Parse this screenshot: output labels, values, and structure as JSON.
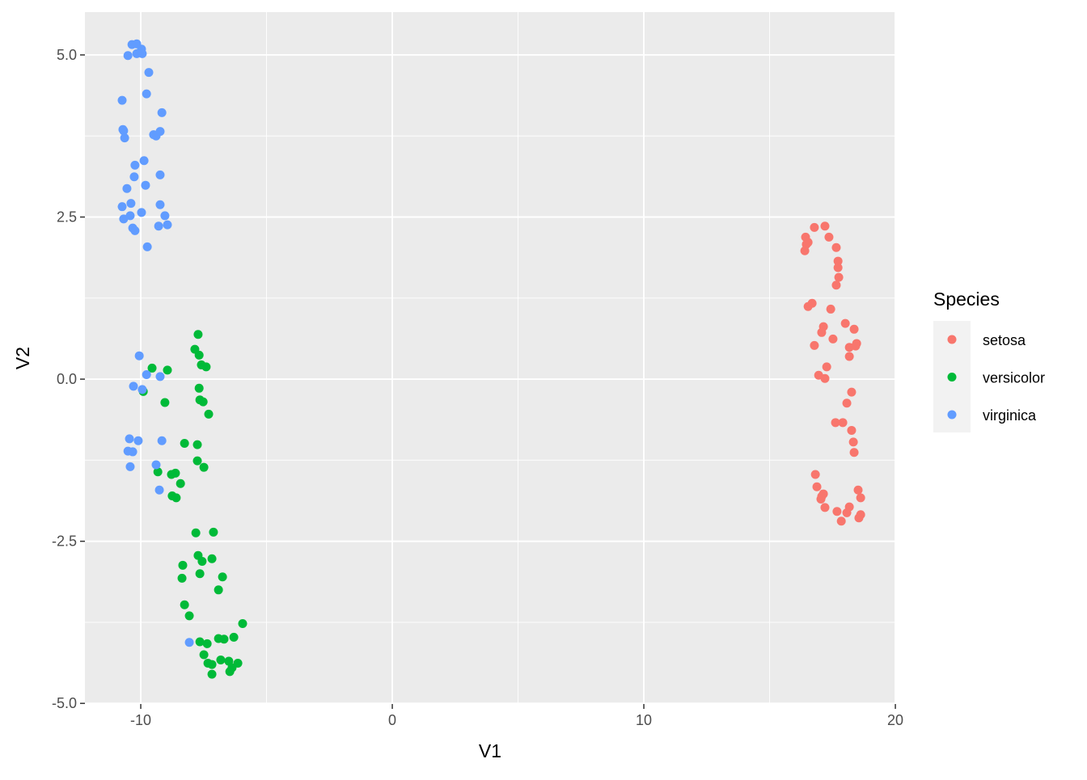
{
  "chart_data": {
    "type": "scatter",
    "title": "",
    "xlabel": "V1",
    "ylabel": "V2",
    "xlim": [
      -12.22,
      20.03
    ],
    "ylim": [
      -5.01,
      5.66
    ],
    "xticks": [
      -10,
      0,
      10,
      20
    ],
    "xtick_labels": [
      "-10",
      "0",
      "10",
      "20"
    ],
    "yticks": [
      -5,
      -2.5,
      0,
      2.5,
      5
    ],
    "ytick_labels": [
      "-5.0",
      "-2.5",
      "0.0",
      "2.5",
      "5.0"
    ],
    "grid": true,
    "panel_background": "#EBEBEB",
    "legend": {
      "title": "Species",
      "placement": "right"
    },
    "series": [
      {
        "name": "setosa",
        "color": "#F8766D",
        "x": [
          16.78,
          17.2,
          16.43,
          16.53,
          16.46,
          17.36,
          17.65,
          16.4,
          17.72,
          17.72,
          17.75,
          17.65,
          16.69,
          16.53,
          17.43,
          17.14,
          17.07,
          18.01,
          18.36,
          17.52,
          16.78,
          18.46,
          18.42,
          18.17,
          18.17,
          17.27,
          16.95,
          17.2,
          18.26,
          18.07,
          17.62,
          17.91,
          18.26,
          18.33,
          18.36,
          16.82,
          16.88,
          17.14,
          17.04,
          17.07,
          18.52,
          18.62,
          17.2,
          18.17,
          17.68,
          18.07,
          18.62,
          18.55,
          17.85
        ],
        "y": [
          2.34,
          2.36,
          2.19,
          2.11,
          2.08,
          2.19,
          2.03,
          1.98,
          1.82,
          1.72,
          1.57,
          1.45,
          1.17,
          1.12,
          1.08,
          0.81,
          0.72,
          0.86,
          0.77,
          0.62,
          0.52,
          0.55,
          0.51,
          0.49,
          0.35,
          0.19,
          0.06,
          0.01,
          -0.2,
          -0.37,
          -0.67,
          -0.67,
          -0.79,
          -0.97,
          -1.13,
          -1.47,
          -1.66,
          -1.77,
          -1.85,
          -1.81,
          -1.71,
          -1.83,
          -1.98,
          -1.97,
          -2.04,
          -2.06,
          -2.09,
          -2.14,
          -2.19
        ]
      },
      {
        "name": "versicolor",
        "color": "#00BA38",
        "x": [
          -7.72,
          -7.85,
          -7.68,
          -7.59,
          -7.4,
          -9.55,
          -8.94,
          -7.68,
          -7.65,
          -7.52,
          -9.04,
          -9.9,
          -7.3,
          -8.26,
          -7.75,
          -7.75,
          -7.49,
          -9.32,
          -8.62,
          -8.78,
          -8.42,
          -8.75,
          -8.59,
          -7.81,
          -7.11,
          -7.72,
          -7.17,
          -8.33,
          -7.56,
          -7.65,
          -6.75,
          -8.36,
          -6.91,
          -8.26,
          -8.07,
          -5.95,
          -6.3,
          -7.65,
          -7.36,
          -6.91,
          -6.69,
          -7.49,
          -6.82,
          -6.5,
          -7.33,
          -7.17,
          -6.14,
          -6.37,
          -6.46,
          -7.17
        ],
        "y": [
          0.69,
          0.46,
          0.37,
          0.22,
          0.19,
          0.17,
          0.14,
          -0.14,
          -0.32,
          -0.35,
          -0.36,
          -0.19,
          -0.54,
          -0.99,
          -1.01,
          -1.26,
          -1.36,
          -1.43,
          -1.45,
          -1.47,
          -1.61,
          -1.8,
          -1.83,
          -2.37,
          -2.36,
          -2.72,
          -2.77,
          -2.87,
          -2.81,
          -3.0,
          -3.05,
          -3.07,
          -3.25,
          -3.48,
          -3.65,
          -3.77,
          -3.98,
          -4.05,
          -4.08,
          -4.0,
          -4.01,
          -4.25,
          -4.33,
          -4.35,
          -4.38,
          -4.4,
          -4.38,
          -4.45,
          -4.51,
          -4.55
        ]
      },
      {
        "name": "virginica",
        "color": "#619CFF",
        "x": [
          -10.35,
          -10.16,
          -9.97,
          -10.16,
          -9.94,
          -10.51,
          -9.68,
          -10.74,
          -9.77,
          -9.16,
          -10.71,
          -10.68,
          -9.49,
          -9.39,
          -9.23,
          -10.64,
          -9.87,
          -10.23,
          -9.23,
          -10.26,
          -9.81,
          -10.55,
          -10.39,
          -9.23,
          -10.74,
          -9.97,
          -9.04,
          -10.42,
          -10.68,
          -8.94,
          -9.29,
          -10.32,
          -10.23,
          -9.74,
          -10.06,
          -9.77,
          -9.23,
          -10.29,
          -9.94,
          -10.45,
          -10.1,
          -9.16,
          -10.51,
          -10.32,
          -9.39,
          -10.42,
          -9.26,
          -8.07
        ],
        "y": [
          5.16,
          5.17,
          5.09,
          5.02,
          5.02,
          4.99,
          4.73,
          4.3,
          4.4,
          4.11,
          3.85,
          3.83,
          3.77,
          3.75,
          3.82,
          3.72,
          3.37,
          3.3,
          3.15,
          3.12,
          2.99,
          2.94,
          2.71,
          2.69,
          2.66,
          2.57,
          2.52,
          2.52,
          2.47,
          2.38,
          2.36,
          2.33,
          2.29,
          2.04,
          0.36,
          0.07,
          0.04,
          -0.11,
          -0.16,
          -0.92,
          -0.95,
          -0.95,
          -1.11,
          -1.12,
          -1.32,
          -1.35,
          -1.71,
          -4.06
        ]
      }
    ]
  }
}
